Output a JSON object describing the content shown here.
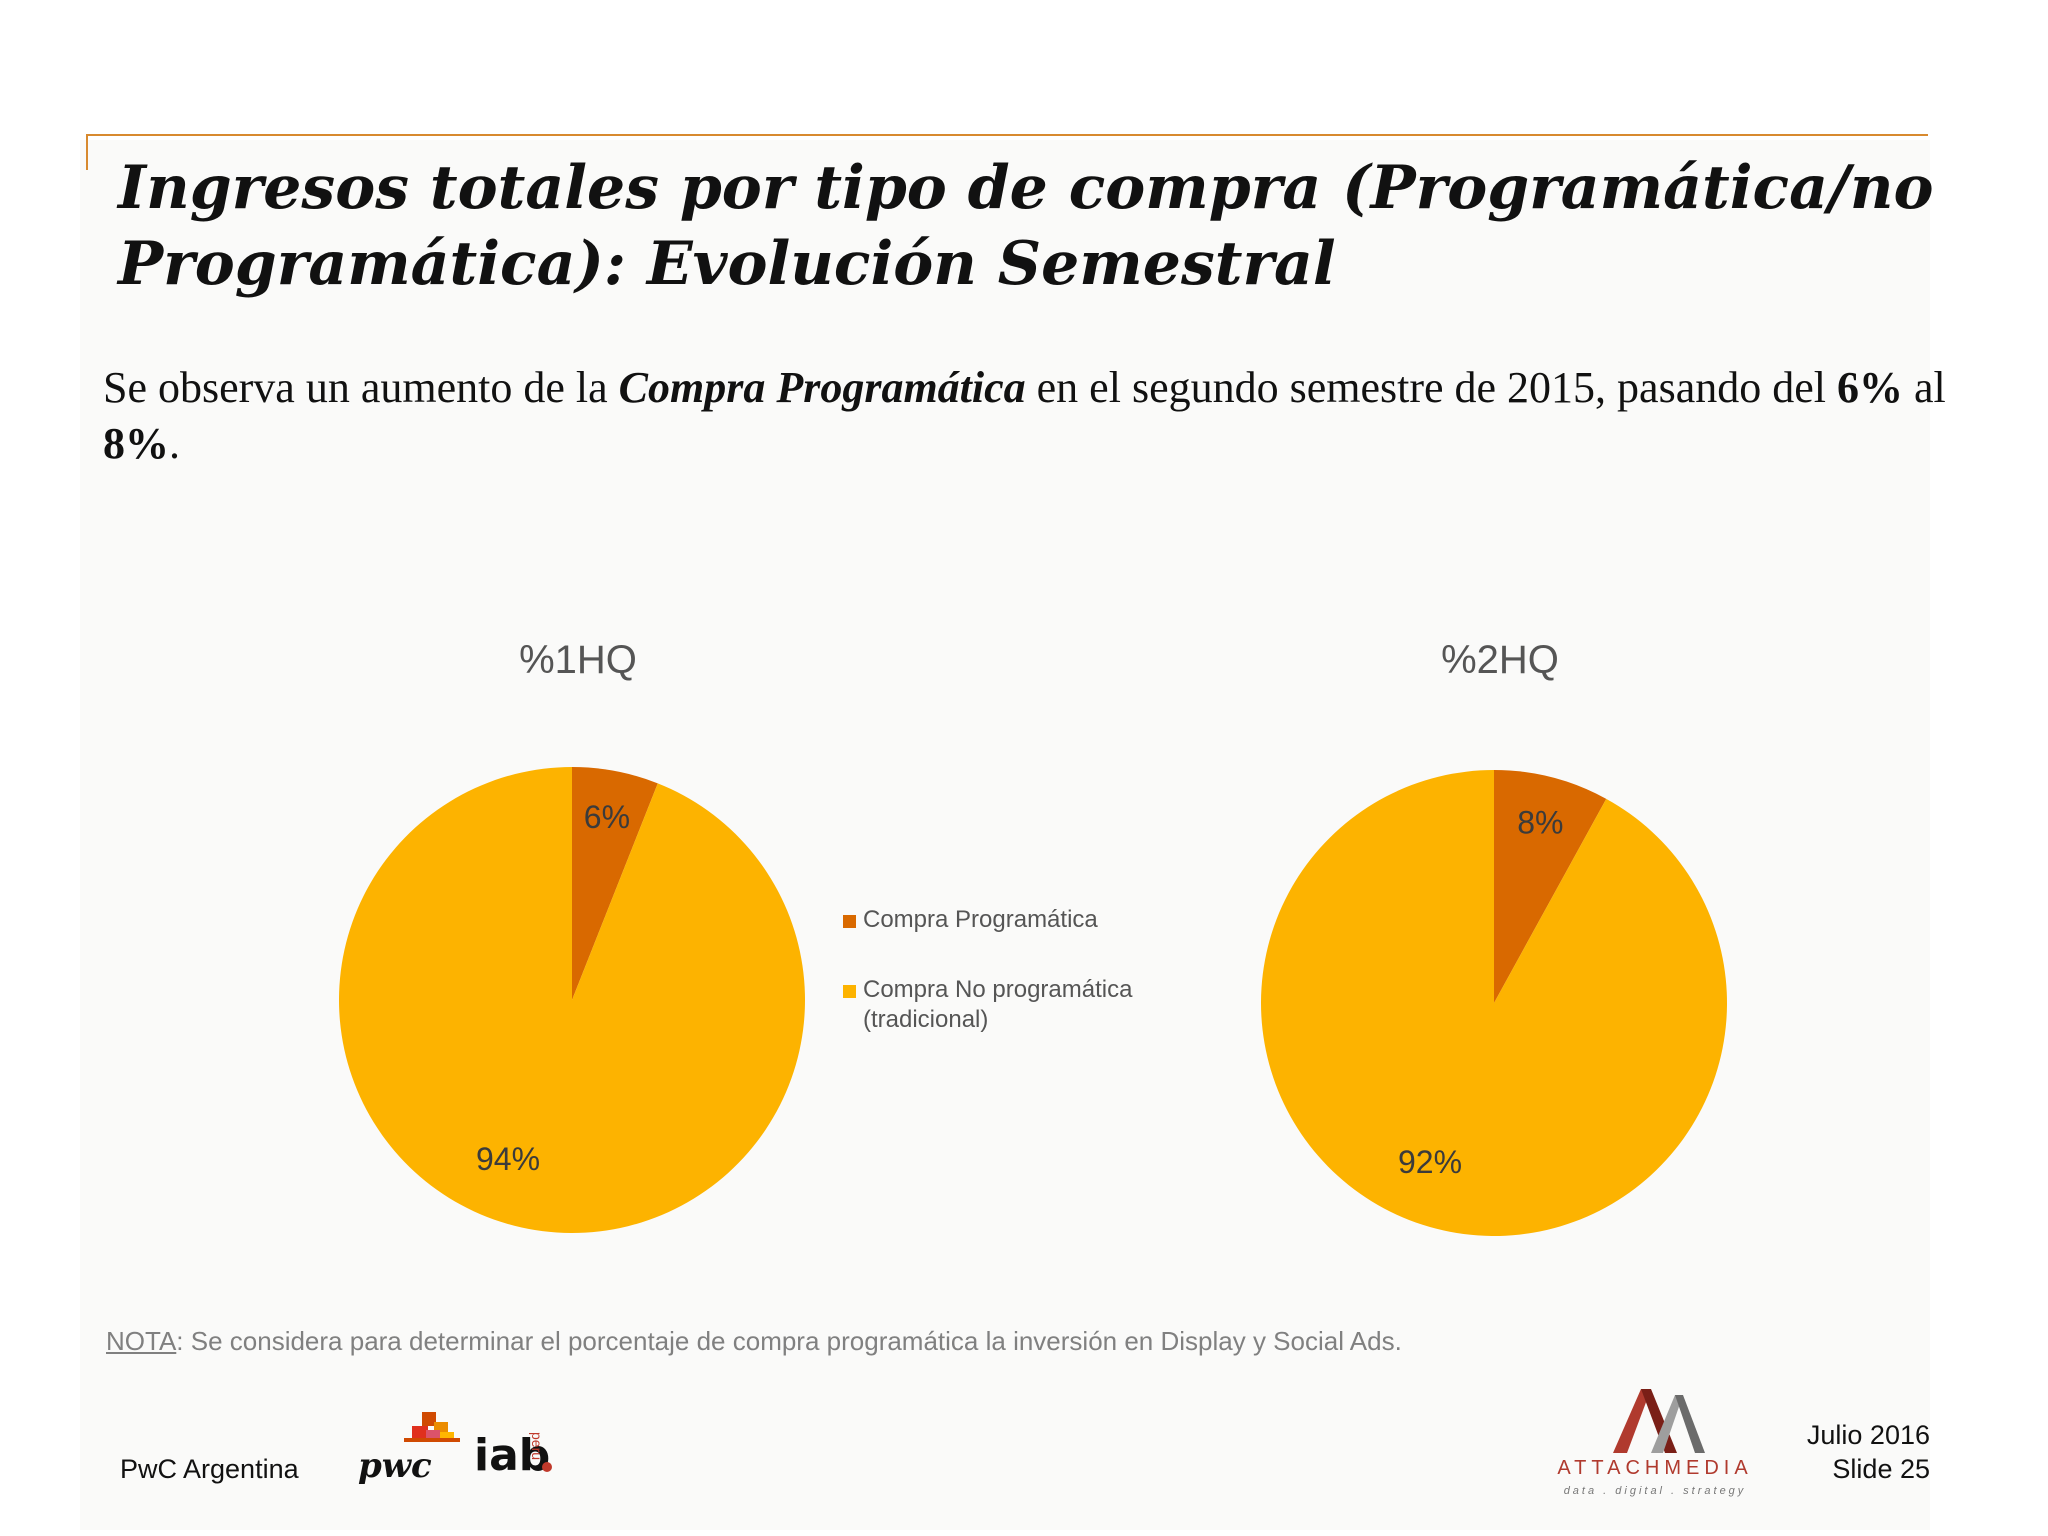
{
  "slide": {
    "title": "Ingresos totales por tipo de compra (Programática/no Programática): Evolución Semestral",
    "subtitle": {
      "part1": "Se observa un aumento de la ",
      "emphasis": "Compra Programática",
      "part2": " en el segundo semestre de 2015, pasando del ",
      "from_value": "6%",
      "part3": " al ",
      "to_value": "8%",
      "part4": "."
    },
    "note": {
      "key": "NOTA",
      "text": ": Se considera para determinar el porcentaje de compra programática la inversión en Display y Social Ads."
    }
  },
  "legend": {
    "items": [
      {
        "label": "Compra Programática",
        "color": "#d96900"
      },
      {
        "label": "Compra No programática (tradicional)",
        "color": "#fdb300"
      }
    ]
  },
  "chart_data": [
    {
      "type": "pie",
      "title": "%1HQ",
      "categories": [
        "Compra Programática",
        "Compra No programática (tradicional)"
      ],
      "values": [
        6,
        94
      ],
      "labels": [
        "6%",
        "94%"
      ],
      "colors": [
        "#d96900",
        "#fdb300"
      ]
    },
    {
      "type": "pie",
      "title": "%2HQ",
      "categories": [
        "Compra Programática",
        "Compra No programática (tradicional)"
      ],
      "values": [
        8,
        92
      ],
      "labels": [
        "8%",
        "92%"
      ],
      "colors": [
        "#d96900",
        "#fdb300"
      ]
    }
  ],
  "footer": {
    "company": "PwC Argentina",
    "pwc_logo_text": "pwc",
    "iab_logo_text": "iab",
    "iab_country": "peru",
    "attach_logo_name": "ATTACHMEDIA",
    "attach_logo_tagline": "data . digital . strategy",
    "date": "Julio 2016",
    "slide_number": "Slide 25"
  }
}
